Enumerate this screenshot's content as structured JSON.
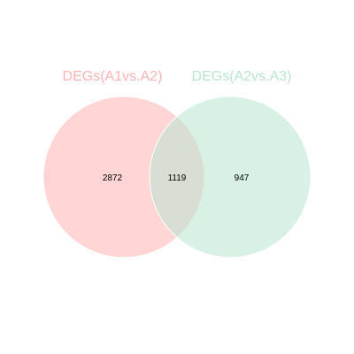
{
  "sets": [
    {
      "name": "DEGs(A1vs.A2)",
      "fill": "#ffb3b3",
      "title_color": "#ffb3b3"
    },
    {
      "name": "DEGs(A2vs.A3)",
      "fill": "#b9e6cf",
      "title_color": "#b9e6cf"
    }
  ],
  "counts": {
    "only_first": "2872",
    "overlap": "1119",
    "only_second": "947"
  }
}
